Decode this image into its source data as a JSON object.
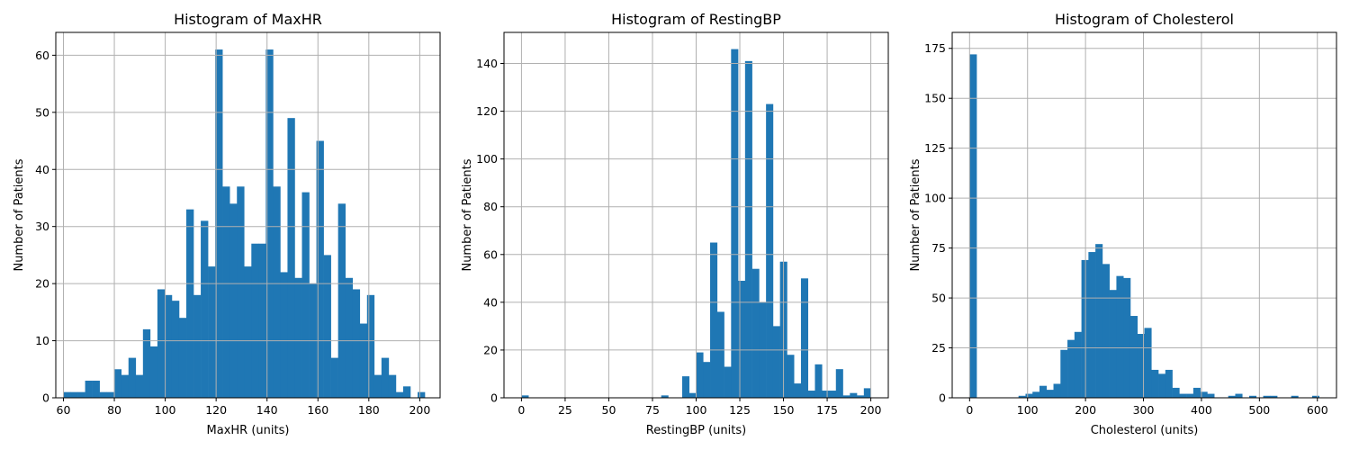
{
  "chart_data": [
    {
      "type": "bar",
      "title": "Histogram of MaxHR",
      "xlabel": "MaxHR (units)",
      "ylabel": "Number of Patients",
      "xlim": [
        57,
        208
      ],
      "ylim": [
        0,
        64
      ],
      "xticks": [
        60,
        80,
        100,
        120,
        140,
        160,
        180,
        200
      ],
      "yticks": [
        0,
        10,
        20,
        30,
        40,
        50,
        60
      ],
      "grid": true,
      "bin_start": 60,
      "bin_width": 2.84,
      "values": [
        1,
        1,
        1,
        3,
        3,
        1,
        1,
        5,
        4,
        7,
        4,
        12,
        9,
        19,
        18,
        17,
        14,
        33,
        18,
        31,
        23,
        61,
        37,
        34,
        37,
        23,
        27,
        27,
        61,
        37,
        22,
        49,
        21,
        36,
        20,
        45,
        25,
        7,
        34,
        21,
        19,
        13,
        18,
        4,
        7,
        4,
        1,
        2,
        0,
        1
      ]
    },
    {
      "type": "bar",
      "title": "Histogram of RestingBP",
      "xlabel": "RestingBP (units)",
      "ylabel": "Number of Patients",
      "xlim": [
        -10,
        210
      ],
      "ylim": [
        0,
        153
      ],
      "xticks": [
        0,
        25,
        50,
        75,
        100,
        125,
        150,
        175,
        200
      ],
      "yticks": [
        0,
        20,
        40,
        60,
        80,
        100,
        120,
        140
      ],
      "grid": true,
      "bin_start": 0,
      "bin_width": 4,
      "values": [
        1,
        0,
        0,
        0,
        0,
        0,
        0,
        0,
        0,
        0,
        0,
        0,
        0,
        0,
        0,
        0,
        0,
        0,
        0,
        0,
        1,
        0,
        0,
        9,
        2,
        19,
        15,
        65,
        36,
        13,
        146,
        49,
        141,
        54,
        40,
        123,
        30,
        57,
        18,
        6,
        50,
        3,
        14,
        3,
        3,
        12,
        1,
        2,
        1,
        4
      ]
    },
    {
      "type": "bar",
      "title": "Histogram of Cholesterol",
      "xlabel": "Cholesterol (units)",
      "ylabel": "Number of Patients",
      "xlim": [
        -30,
        633
      ],
      "ylim": [
        0,
        183
      ],
      "xticks": [
        0,
        100,
        200,
        300,
        400,
        500,
        600
      ],
      "yticks": [
        0,
        25,
        50,
        75,
        100,
        125,
        150,
        175
      ],
      "grid": true,
      "bin_start": 0,
      "bin_width": 12.06,
      "values": [
        172,
        0,
        0,
        0,
        0,
        0,
        0,
        1,
        2,
        3,
        6,
        4,
        7,
        24,
        29,
        33,
        69,
        73,
        77,
        67,
        54,
        61,
        60,
        41,
        32,
        35,
        14,
        12,
        14,
        5,
        2,
        2,
        5,
        3,
        2,
        0,
        0,
        1,
        2,
        0,
        1,
        0,
        1,
        1,
        0,
        0,
        1,
        0,
        0,
        1
      ]
    }
  ]
}
